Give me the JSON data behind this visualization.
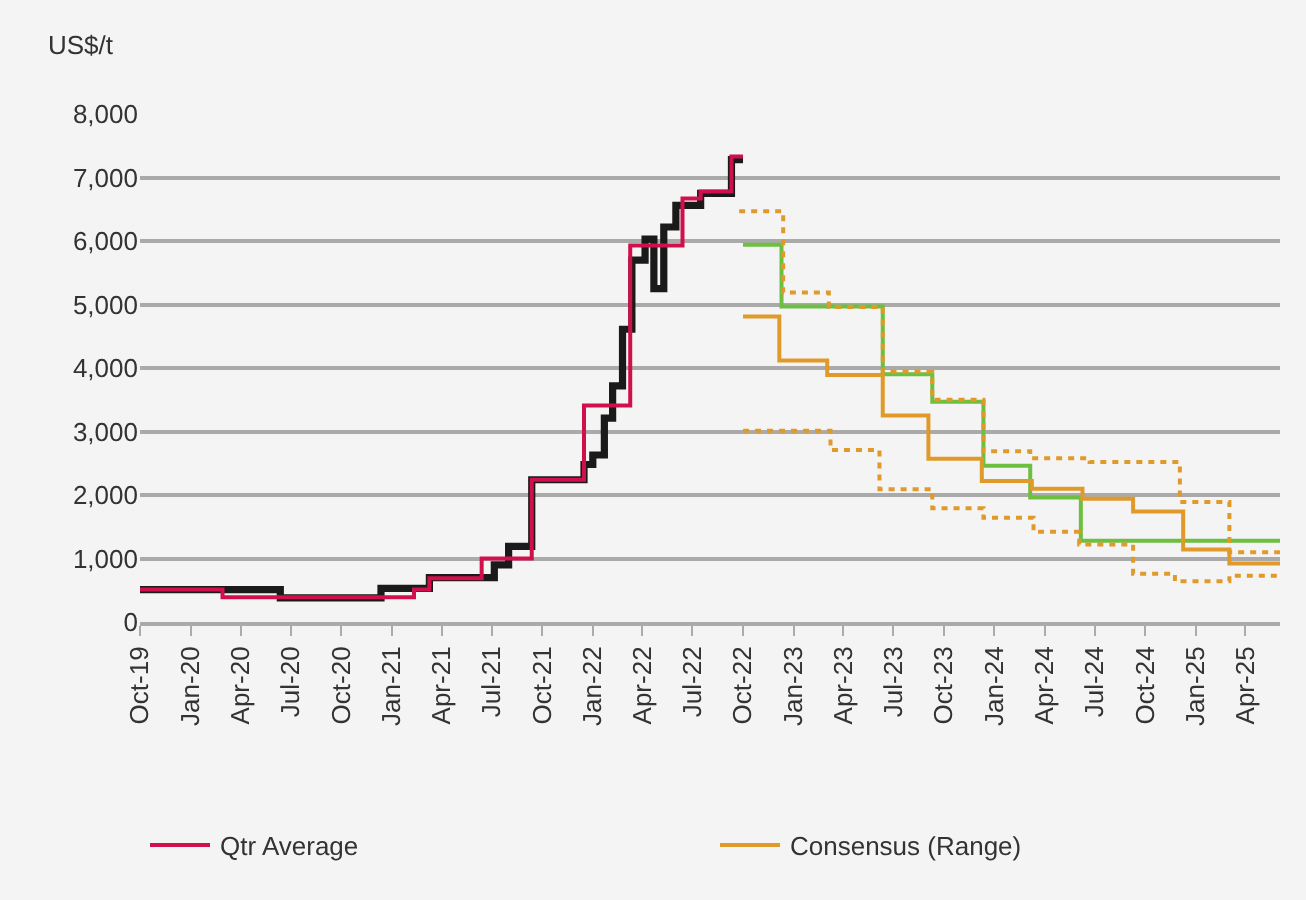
{
  "chart_data": {
    "type": "step",
    "ylabel": "US$/t",
    "xlim": [
      "2019-10-01",
      "2025-06-03"
    ],
    "xticks": [
      {
        "value": "2019-10-01",
        "label": "Oct-19"
      },
      {
        "value": "2020-01-01",
        "label": "Jan-20"
      },
      {
        "value": "2020-04-01",
        "label": "Apr-20"
      },
      {
        "value": "2020-07-01",
        "label": "Jul-20"
      },
      {
        "value": "2020-10-01",
        "label": "Oct-20"
      },
      {
        "value": "2021-01-01",
        "label": "Jan-21"
      },
      {
        "value": "2021-04-01",
        "label": "Apr-21"
      },
      {
        "value": "2021-07-01",
        "label": "Jul-21"
      },
      {
        "value": "2021-10-01",
        "label": "Oct-21"
      },
      {
        "value": "2022-01-01",
        "label": "Jan-22"
      },
      {
        "value": "2022-04-01",
        "label": "Apr-22"
      },
      {
        "value": "2022-07-01",
        "label": "Jul-22"
      },
      {
        "value": "2022-10-01",
        "label": "Oct-22"
      },
      {
        "value": "2023-01-01",
        "label": "Jan-23"
      },
      {
        "value": "2023-04-01",
        "label": "Apr-23"
      },
      {
        "value": "2023-07-01",
        "label": "Jul-23"
      },
      {
        "value": "2023-10-01",
        "label": "Oct-23"
      },
      {
        "value": "2024-01-01",
        "label": "Jan-24"
      },
      {
        "value": "2024-04-01",
        "label": "Apr-24"
      },
      {
        "value": "2024-07-01",
        "label": "Jul-24"
      },
      {
        "value": "2024-10-01",
        "label": "Oct-24"
      },
      {
        "value": "2025-01-01",
        "label": "Jan-25"
      },
      {
        "value": "2025-04-01",
        "label": "Apr-25"
      }
    ],
    "ylim": [
      0,
      8000
    ],
    "yticks": [
      0,
      {
        "value": 1000,
        "label": "1,000"
      },
      {
        "value": 2000,
        "label": "2,000"
      },
      {
        "value": 3000,
        "label": "3,000"
      },
      {
        "value": 4000,
        "label": "4,000"
      },
      {
        "value": 5000,
        "label": "5,000"
      },
      {
        "value": 6000,
        "label": "6,000"
      },
      {
        "value": 7000,
        "label": "7,000"
      },
      {
        "value": 8000,
        "label": "8,000"
      }
    ],
    "grid": "y",
    "legend": "bottom",
    "line_style": "solid",
    "marker": "none",
    "series": [
      {
        "color": "#1a1a1a",
        "x": [
          "2019-10-01",
          "2020-06-12",
          "2020-12-12",
          "2021-03-10",
          "2021-07-06",
          "2021-08-01",
          "2021-09-12",
          "2021-12-16",
          "2022-01-01",
          "2022-01-22",
          "2022-02-06",
          "2022-02-24",
          "2022-03-13",
          "2022-04-06",
          "2022-04-22",
          "2022-05-10",
          "2022-06-01",
          "2022-07-16",
          "2022-09-10",
          "2022-10-01"
        ],
        "values": [
          510,
          380,
          530,
          700,
          900,
          1190,
          2240,
          2480,
          2630,
          3210,
          3720,
          4610,
          5700,
          6030,
          5250,
          6220,
          6560,
          6750,
          7280,
          7280
        ]
      },
      {
        "name": "Qtr Average",
        "color": "#d0104c",
        "x": [
          "2019-10-01",
          "2020-02-28",
          "2021-02-10",
          "2021-03-10",
          "2021-06-13",
          "2021-09-12",
          "2021-12-16",
          "2022-03-10",
          "2022-06-13",
          "2022-07-16",
          "2022-09-10",
          "2022-10-01"
        ],
        "values": [
          510,
          390,
          510,
          690,
          1000,
          2240,
          3410,
          5930,
          6670,
          6780,
          7330,
          7330
        ]
      },
      {
        "color": "#6dbf3f",
        "x": [
          "2022-10-01",
          "2022-12-10",
          "2023-06-12",
          "2023-09-10",
          "2023-12-12",
          "2024-03-06",
          "2024-06-06",
          "2025-06-03"
        ],
        "values": [
          5940,
          4970,
          3900,
          3470,
          2460,
          1960,
          1280,
          1280
        ]
      },
      {
        "name": "Consensus (Range)",
        "color": "#e09a2a",
        "x": [
          "2022-10-01",
          "2022-12-06",
          "2023-03-03",
          "2023-06-12",
          "2023-09-03",
          "2023-12-09",
          "2024-03-09",
          "2024-06-09",
          "2024-09-09",
          "2024-12-09",
          "2025-03-03",
          "2025-06-03"
        ],
        "values": [
          4810,
          4120,
          3890,
          3250,
          2570,
          2220,
          2100,
          1940,
          1740,
          1140,
          920,
          920
        ]
      },
      {
        "color": "#e09a2a",
        "line_style": "dotted",
        "x": [
          "2022-09-24",
          "2022-12-13",
          "2023-03-06",
          "2023-06-12",
          "2023-09-10",
          "2023-12-12",
          "2024-03-06",
          "2024-06-22",
          "2024-12-03",
          "2025-03-03",
          "2025-06-03"
        ],
        "values": [
          6470,
          5190,
          4960,
          3940,
          3500,
          2690,
          2580,
          2520,
          1890,
          1100,
          1100
        ]
      },
      {
        "color": "#e09a2a",
        "line_style": "dotted",
        "x": [
          "2022-10-01",
          "2023-03-09",
          "2023-06-06",
          "2023-09-10",
          "2023-12-12",
          "2024-03-12",
          "2024-06-03",
          "2024-09-09",
          "2024-11-24",
          "2025-03-03",
          "2025-06-03"
        ],
        "values": [
          3010,
          2710,
          2090,
          1790,
          1640,
          1420,
          1220,
          760,
          640,
          730,
          730
        ]
      }
    ]
  }
}
